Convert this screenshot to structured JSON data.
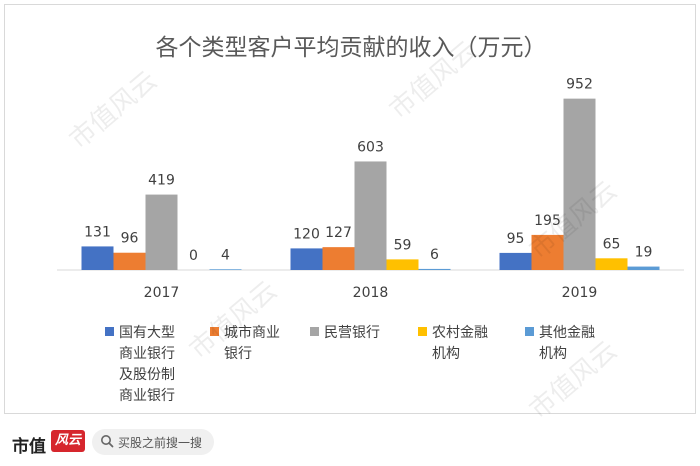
{
  "chart_data": {
    "type": "bar",
    "title": "各个类型客户平均贡献的收入（万元）",
    "categories": [
      "2017",
      "2018",
      "2019"
    ],
    "series": [
      {
        "name": "国有大型商业银行及股份制商业银行",
        "legend_lines": [
          "国有大型",
          "商业银行",
          "及股份制",
          "商业银行"
        ],
        "color": "#4472c4",
        "values": [
          131,
          120,
          95
        ]
      },
      {
        "name": "城市商业银行",
        "legend_lines": [
          "城市商业",
          "银行"
        ],
        "color": "#ed7d31",
        "values": [
          96,
          127,
          195
        ]
      },
      {
        "name": "民营银行",
        "legend_lines": [
          "民营银行"
        ],
        "color": "#a5a5a5",
        "values": [
          419,
          603,
          952
        ]
      },
      {
        "name": "农村金融机构",
        "legend_lines": [
          "农村金融",
          "机构"
        ],
        "color": "#ffc000",
        "values": [
          0,
          59,
          65
        ]
      },
      {
        "name": "其他金融机构",
        "legend_lines": [
          "其他金融",
          "机构"
        ],
        "color": "#5b9bd5",
        "values": [
          4,
          6,
          19
        ]
      }
    ],
    "ylim": [
      0,
      1000
    ],
    "grid": false,
    "legend_position": "bottom"
  },
  "watermark_text": "市值风云",
  "footer": {
    "brand": "市值",
    "badge": "风云",
    "search_placeholder": "买股之前搜一搜"
  }
}
